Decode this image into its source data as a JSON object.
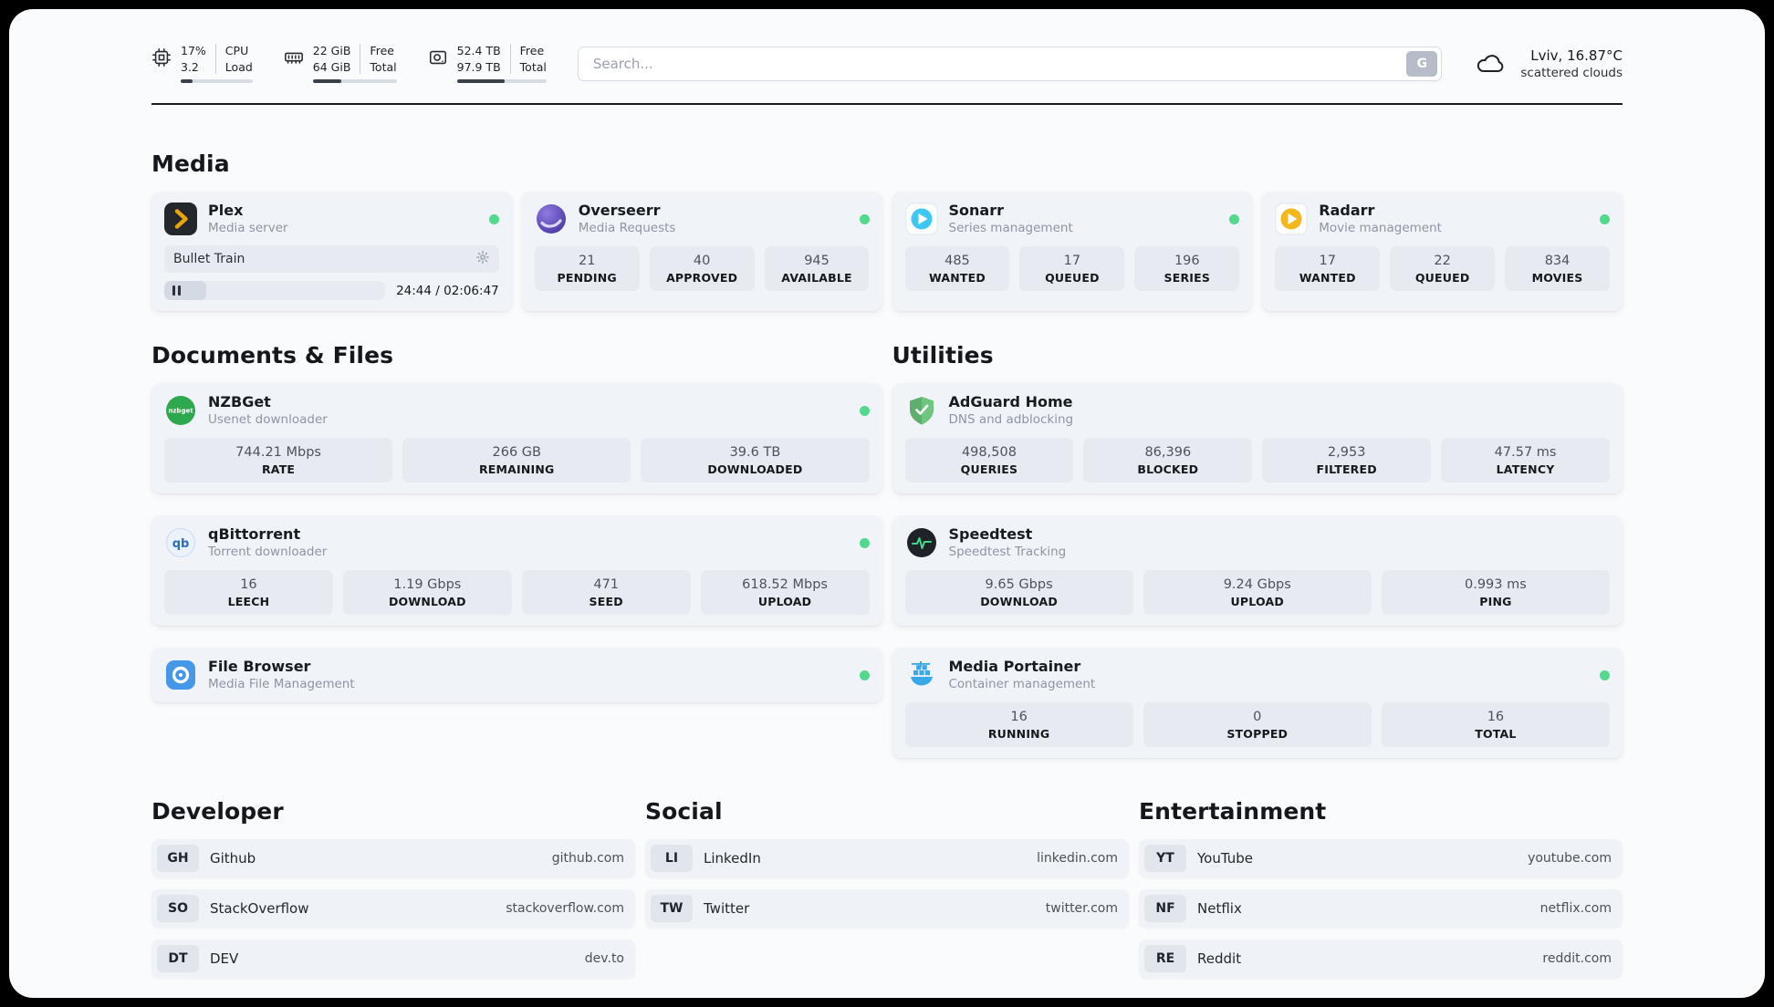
{
  "colors": {
    "page_background": "#fafbfd",
    "card_background": "#f0f3f7",
    "stat_background": "#e7ebf1",
    "status_online": "#52d98d",
    "accent_plex": "#e8a50e",
    "accent_overseerr": "#5a48c0",
    "accent_sonarr": "#3ec6f4",
    "accent_radarr": "#f3b71e",
    "accent_nzbget": "#2ea84e",
    "accent_adguard": "#6fc67f",
    "accent_qbittorrent": "#2e6db5",
    "accent_speedtest": "#43d98a",
    "accent_filebrowser": "#4597e8",
    "accent_portainer": "#38a8e8"
  },
  "header": {
    "cpu": {
      "value_top": "17%",
      "value_bottom": "3.2",
      "label_top": "CPU",
      "label_bottom": "Load",
      "progress": 17
    },
    "memory": {
      "value_top": "22 GiB",
      "value_bottom": "64 GiB",
      "label_top": "Free",
      "label_bottom": "Total",
      "progress": 34
    },
    "disk": {
      "value_top": "52.4 TB",
      "value_bottom": "97.9 TB",
      "label_top": "Free",
      "label_bottom": "Total",
      "progress": 53
    },
    "search": {
      "placeholder": "Search...",
      "button_label": "G"
    },
    "weather": {
      "location": "Lviv, 16.87°C",
      "condition": "scattered clouds"
    }
  },
  "sections": {
    "media": "Media",
    "documents": "Documents & Files",
    "utilities": "Utilities",
    "developer": "Developer",
    "social": "Social",
    "entertainment": "Entertainment"
  },
  "media": {
    "plex": {
      "name": "Plex",
      "subtitle": "Media server",
      "now_playing": "Bullet Train",
      "time": "24:44 / 02:06:47",
      "progress": 19
    },
    "overseerr": {
      "name": "Overseerr",
      "subtitle": "Media Requests",
      "stats": [
        {
          "value": "21",
          "label": "PENDING"
        },
        {
          "value": "40",
          "label": "APPROVED"
        },
        {
          "value": "945",
          "label": "AVAILABLE"
        }
      ]
    },
    "sonarr": {
      "name": "Sonarr",
      "subtitle": "Series management",
      "stats": [
        {
          "value": "485",
          "label": "WANTED"
        },
        {
          "value": "17",
          "label": "QUEUED"
        },
        {
          "value": "196",
          "label": "SERIES"
        }
      ]
    },
    "radarr": {
      "name": "Radarr",
      "subtitle": "Movie management",
      "stats": [
        {
          "value": "17",
          "label": "WANTED"
        },
        {
          "value": "22",
          "label": "QUEUED"
        },
        {
          "value": "834",
          "label": "MOVIES"
        }
      ]
    }
  },
  "documents": {
    "nzbget": {
      "name": "NZBGet",
      "subtitle": "Usenet downloader",
      "stats": [
        {
          "value": "744.21 Mbps",
          "label": "RATE"
        },
        {
          "value": "266 GB",
          "label": "REMAINING"
        },
        {
          "value": "39.6 TB",
          "label": "DOWNLOADED"
        }
      ]
    },
    "qbittorrent": {
      "name": "qBittorrent",
      "subtitle": "Torrent downloader",
      "stats": [
        {
          "value": "16",
          "label": "LEECH"
        },
        {
          "value": "1.19 Gbps",
          "label": "DOWNLOAD"
        },
        {
          "value": "471",
          "label": "SEED"
        },
        {
          "value": "618.52 Mbps",
          "label": "UPLOAD"
        }
      ]
    },
    "filebrowser": {
      "name": "File Browser",
      "subtitle": "Media File Management"
    }
  },
  "utilities": {
    "adguard": {
      "name": "AdGuard Home",
      "subtitle": "DNS and adblocking",
      "stats": [
        {
          "value": "498,508",
          "label": "QUERIES"
        },
        {
          "value": "86,396",
          "label": "BLOCKED"
        },
        {
          "value": "2,953",
          "label": "FILTERED"
        },
        {
          "value": "47.57 ms",
          "label": "LATENCY"
        }
      ]
    },
    "speedtest": {
      "name": "Speedtest",
      "subtitle": "Speedtest Tracking",
      "stats": [
        {
          "value": "9.65 Gbps",
          "label": "DOWNLOAD"
        },
        {
          "value": "9.24 Gbps",
          "label": "UPLOAD"
        },
        {
          "value": "0.993 ms",
          "label": "PING"
        }
      ]
    },
    "portainer": {
      "name": "Media Portainer",
      "subtitle": "Container management",
      "stats": [
        {
          "value": "16",
          "label": "RUNNING"
        },
        {
          "value": "0",
          "label": "STOPPED"
        },
        {
          "value": "16",
          "label": "TOTAL"
        }
      ]
    }
  },
  "bookmarks": {
    "developer": [
      {
        "abbr": "GH",
        "name": "Github",
        "url": "github.com"
      },
      {
        "abbr": "SO",
        "name": "StackOverflow",
        "url": "stackoverflow.com"
      },
      {
        "abbr": "DT",
        "name": "DEV",
        "url": "dev.to"
      }
    ],
    "social": [
      {
        "abbr": "LI",
        "name": "LinkedIn",
        "url": "linkedin.com"
      },
      {
        "abbr": "TW",
        "name": "Twitter",
        "url": "twitter.com"
      }
    ],
    "entertainment": [
      {
        "abbr": "YT",
        "name": "YouTube",
        "url": "youtube.com"
      },
      {
        "abbr": "NF",
        "name": "Netflix",
        "url": "netflix.com"
      },
      {
        "abbr": "RE",
        "name": "Reddit",
        "url": "reddit.com"
      }
    ]
  }
}
